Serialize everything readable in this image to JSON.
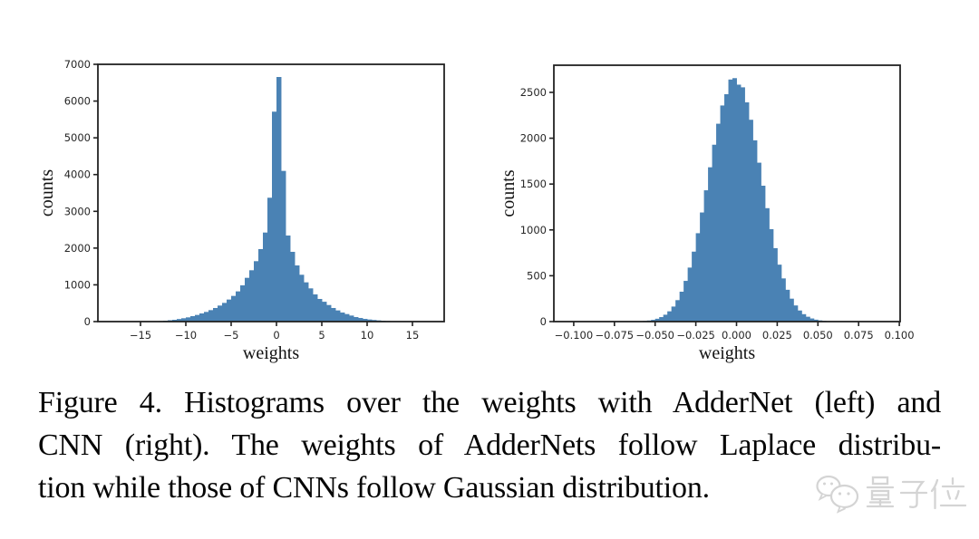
{
  "figure": {
    "caption_lines": [
      "Figure 4. Histograms over the weights with AdderNet (left) and",
      "CNN (right). The weights of AdderNets follow Laplace distribu-",
      "tion while those of CNNs follow Gaussian distribution."
    ]
  },
  "watermark": {
    "text": "量子位",
    "icon": "wechat-bubbles-icon",
    "color": "#d4d4d4"
  },
  "chart_data": [
    {
      "type": "bar",
      "name": "addernet-weights-histogram",
      "title": "",
      "xlabel": "weights",
      "ylabel": "counts",
      "bar_color": "#4a82b4",
      "axis_color": "#222222",
      "grid": false,
      "legend": null,
      "xlim": [
        -19.7,
        18.5
      ],
      "ylim": [
        0,
        7000
      ],
      "xtick_values": [
        -15,
        -10,
        -5,
        0,
        5,
        10,
        15
      ],
      "xtick_labels": [
        "−15",
        "−10",
        "−5",
        "0",
        "5",
        "10",
        "15"
      ],
      "ytick_values": [
        0,
        1000,
        2000,
        3000,
        4000,
        5000,
        6000,
        7000
      ],
      "ytick_labels": [
        "0",
        "1000",
        "2000",
        "3000",
        "4000",
        "5000",
        "6000",
        "7000"
      ],
      "bins": {
        "start": -14.0,
        "width": 0.5,
        "counts": [
          0,
          8,
          15,
          25,
          37,
          49,
          70,
          91,
          115,
          148,
          181,
          222,
          263,
          312,
          370,
          436,
          509,
          600,
          699,
          822,
          986,
          1191,
          1397,
          1644,
          1972,
          2423,
          3370,
          5712,
          6655,
          4100,
          2342,
          1898,
          1528,
          1274,
          1068,
          904,
          740,
          616,
          540,
          451,
          370,
          304,
          246,
          205,
          164,
          123,
          98,
          74,
          57,
          44,
          33,
          24,
          16,
          9,
          4,
          0
        ]
      }
    },
    {
      "type": "bar",
      "name": "cnn-weights-histogram",
      "title": "",
      "xlabel": "weights",
      "ylabel": "counts",
      "bar_color": "#4a82b4",
      "axis_color": "#222222",
      "grid": false,
      "legend": null,
      "xlim": [
        -0.1122,
        0.1005
      ],
      "ylim": [
        0,
        2796
      ],
      "xtick_values": [
        -0.1,
        -0.075,
        -0.05,
        -0.025,
        0.0,
        0.025,
        0.05,
        0.075,
        0.1
      ],
      "xtick_labels": [
        "−0.100",
        "−0.075",
        "−0.050",
        "−0.025",
        "0.000",
        "0.025",
        "0.050",
        "0.075",
        "0.100"
      ],
      "ytick_values": [
        0,
        500,
        1000,
        1500,
        2000,
        2500
      ],
      "ytick_labels": [
        "0",
        "500",
        "1000",
        "1500",
        "2000",
        "2500"
      ],
      "bins": {
        "start": -0.08,
        "width": 0.0025,
        "counts": [
          0,
          0,
          0,
          1,
          1,
          1,
          1,
          2,
          4,
          7,
          12,
          19,
          31,
          49,
          75,
          112,
          164,
          234,
          326,
          444,
          589,
          763,
          964,
          1190,
          1432,
          1683,
          1929,
          2158,
          2357,
          2480,
          2640,
          2655,
          2584,
          2555,
          2391,
          2201,
          1977,
          1733,
          1482,
          1237,
          1008,
          801,
          621,
          471,
          347,
          250,
          176,
          121,
          81,
          53,
          34,
          21,
          13,
          8,
          4,
          2,
          3,
          1,
          1,
          0,
          0,
          0,
          0,
          0
        ]
      }
    }
  ]
}
